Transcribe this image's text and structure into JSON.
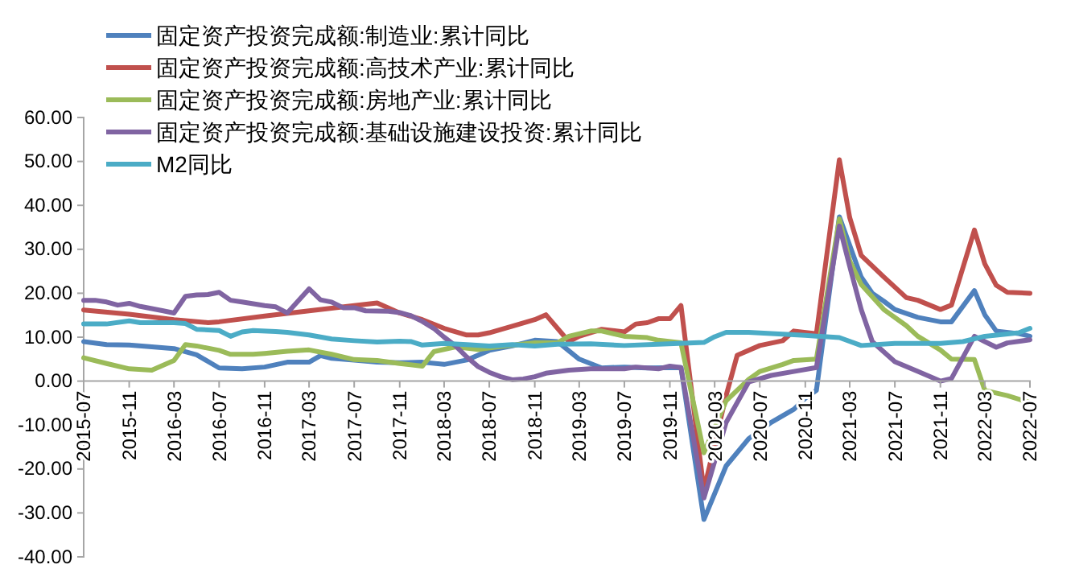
{
  "chart_data": {
    "type": "line",
    "legend": "top left",
    "grid": false,
    "marker": "none",
    "line_style": "solid",
    "xlim": [
      "2015-07",
      "2022-07"
    ],
    "xticks": [
      "2015-07",
      "2015-11",
      "2016-03",
      "2016-07",
      "2016-11",
      "2017-03",
      "2017-07",
      "2017-11",
      "2018-03",
      "2018-07",
      "2018-11",
      "2019-03",
      "2019-07",
      "2019-11",
      "2020-03",
      "2020-07",
      "2020-11",
      "2021-03",
      "2021-07",
      "2021-11",
      "2022-03",
      "2022-07"
    ],
    "ylim": [
      -40,
      60
    ],
    "yticks": [
      {
        "value": -40,
        "label": "-40.00"
      },
      {
        "value": -30,
        "label": "-30.00"
      },
      {
        "value": -20,
        "label": "-20.00"
      },
      {
        "value": -10,
        "label": "-10.00"
      },
      {
        "value": 0,
        "label": "0.00"
      },
      {
        "value": 10,
        "label": "10.00"
      },
      {
        "value": 20,
        "label": "20.00"
      },
      {
        "value": 30,
        "label": "30.00"
      },
      {
        "value": 40,
        "label": "40.00"
      },
      {
        "value": 50,
        "label": "50.00"
      },
      {
        "value": 60,
        "label": "60.00"
      }
    ],
    "series": [
      {
        "name": "固定资产投资完成额:制造业:累计同比",
        "color": "#4f81bd",
        "x": [
          "2015-07",
          "2015-09",
          "2015-11",
          "2016-01",
          "2016-03",
          "2016-05",
          "2016-07",
          "2016-09",
          "2016-11",
          "2017-01",
          "2017-03",
          "2017-04",
          "2017-05",
          "2017-07",
          "2017-09",
          "2017-11",
          "2018-01",
          "2018-03",
          "2018-05",
          "2018-07",
          "2018-09",
          "2018-11",
          "2019-01",
          "2019-03",
          "2019-05",
          "2019-07",
          "2019-09",
          "2019-12",
          "2020-02",
          "2020-04",
          "2020-06",
          "2020-08",
          "2020-10",
          "2020-11",
          "2020-12",
          "2021-02",
          "2021-04",
          "2021-05",
          "2021-06",
          "2021-07",
          "2021-09",
          "2021-11",
          "2021-12",
          "2022-02",
          "2022-03",
          "2022-04",
          "2022-06",
          "2022-07"
        ],
        "values": [
          9.0,
          8.3,
          8.2,
          7.8,
          7.4,
          6.0,
          3.0,
          2.8,
          3.2,
          4.3,
          4.3,
          5.8,
          5.2,
          4.8,
          4.3,
          4.2,
          4.3,
          3.8,
          4.8,
          7.0,
          8.0,
          9.3,
          9.0,
          5.0,
          3.0,
          3.2,
          3.0,
          3.1,
          -31.5,
          -19.3,
          -13.1,
          -9.4,
          -6.4,
          -3.9,
          -2.1,
          37.4,
          23.7,
          20.0,
          18.2,
          16.3,
          14.5,
          13.5,
          13.5,
          20.6,
          15.1,
          11.4,
          10.8,
          10.2
        ]
      },
      {
        "name": "固定资产投资完成额:高技术产业:累计同比",
        "color": "#c0504d",
        "x": [
          "2015-07",
          "2015-11",
          "2016-03",
          "2016-06",
          "2016-07",
          "2016-11",
          "2017-03",
          "2017-07",
          "2017-09",
          "2017-11",
          "2018-01",
          "2018-03",
          "2018-05",
          "2018-06",
          "2018-07",
          "2018-09",
          "2018-11",
          "2018-12",
          "2019-02",
          "2019-03",
          "2019-05",
          "2019-07",
          "2019-08",
          "2019-09",
          "2019-10",
          "2019-11",
          "2019-12",
          "2020-02",
          "2020-04",
          "2020-05",
          "2020-07",
          "2020-09",
          "2020-10",
          "2020-12",
          "2021-02",
          "2021-03",
          "2021-04",
          "2021-06",
          "2021-08",
          "2021-09",
          "2021-11",
          "2021-12",
          "2022-02",
          "2022-03",
          "2022-04",
          "2022-05",
          "2022-07"
        ],
        "values": [
          16.2,
          15.2,
          14.0,
          13.3,
          13.5,
          14.8,
          16.0,
          17.2,
          17.8,
          15.5,
          14.0,
          12.0,
          10.5,
          10.5,
          11.0,
          12.5,
          14.0,
          15.1,
          9.0,
          10.2,
          11.8,
          11.2,
          13.0,
          13.3,
          14.2,
          14.2,
          17.2,
          -24.8,
          -3.3,
          5.9,
          8.1,
          9.2,
          11.4,
          10.8,
          50.4,
          37.2,
          28.6,
          23.7,
          19.0,
          18.4,
          16.3,
          17.3,
          34.4,
          26.7,
          21.8,
          20.2,
          20.0
        ]
      },
      {
        "name": "固定资产投资完成额:房地产业:累计同比",
        "color": "#9bbb59",
        "x": [
          "2015-07",
          "2015-09",
          "2015-11",
          "2016-01",
          "2016-03",
          "2016-04",
          "2016-05",
          "2016-07",
          "2016-08",
          "2016-10",
          "2016-11",
          "2017-01",
          "2017-03",
          "2017-05",
          "2017-07",
          "2017-09",
          "2017-11",
          "2018-01",
          "2018-02",
          "2018-04",
          "2018-06",
          "2018-08",
          "2018-11",
          "2019-01",
          "2019-02",
          "2019-04",
          "2019-05",
          "2019-07",
          "2019-09",
          "2019-10",
          "2019-12",
          "2020-02",
          "2020-04",
          "2020-06",
          "2020-07",
          "2020-09",
          "2020-10",
          "2020-12",
          "2021-02",
          "2021-03",
          "2021-04",
          "2021-06",
          "2021-08",
          "2021-09",
          "2021-11",
          "2021-12",
          "2022-02",
          "2022-03",
          "2022-05",
          "2022-07"
        ],
        "values": [
          5.3,
          4.0,
          2.8,
          2.5,
          4.7,
          8.3,
          8.0,
          7.0,
          6.1,
          6.1,
          6.3,
          6.8,
          7.1,
          6.1,
          4.9,
          4.7,
          4.0,
          3.4,
          6.7,
          7.8,
          7.2,
          7.9,
          8.7,
          8.7,
          10.2,
          11.4,
          11.4,
          10.2,
          9.9,
          9.3,
          8.7,
          -16.3,
          -4.5,
          0.4,
          2.2,
          3.8,
          4.7,
          5.0,
          36.9,
          27.4,
          22.0,
          16.3,
          12.6,
          10.2,
          7.1,
          5.0,
          4.9,
          -2.1,
          -3.3,
          -4.9
        ]
      },
      {
        "name": "固定资产投资完成额:基础设施建设投资:累计同比",
        "color": "#8064a2",
        "x": [
          "2015-07",
          "2015-08",
          "2015-09",
          "2015-10",
          "2015-11",
          "2015-12",
          "2016-02",
          "2016-03",
          "2016-04",
          "2016-05",
          "2016-06",
          "2016-07",
          "2016-08",
          "2016-09",
          "2016-11",
          "2016-12",
          "2017-01",
          "2017-03",
          "2017-04",
          "2017-05",
          "2017-06",
          "2017-07",
          "2017-08",
          "2017-10",
          "2017-11",
          "2017-12",
          "2018-01",
          "2018-02",
          "2018-03",
          "2018-04",
          "2018-05",
          "2018-06",
          "2018-07",
          "2018-08",
          "2018-09",
          "2018-10",
          "2018-11",
          "2018-12",
          "2019-02",
          "2019-04",
          "2019-07",
          "2019-08",
          "2019-10",
          "2019-11",
          "2019-12",
          "2020-02",
          "2020-04",
          "2020-06",
          "2020-08",
          "2020-10",
          "2020-12",
          "2021-02",
          "2021-03",
          "2021-04",
          "2021-05",
          "2021-07",
          "2021-09",
          "2021-11",
          "2021-12",
          "2022-02",
          "2022-03",
          "2022-04",
          "2022-05",
          "2022-07"
        ],
        "values": [
          18.4,
          18.4,
          18.0,
          17.3,
          17.7,
          17.0,
          16.0,
          15.5,
          19.3,
          19.6,
          19.7,
          20.2,
          18.4,
          18.0,
          17.2,
          16.9,
          15.5,
          21.0,
          18.5,
          18.0,
          16.7,
          16.7,
          16.0,
          15.9,
          15.6,
          14.9,
          13.6,
          12.0,
          10.0,
          8.0,
          5.5,
          3.3,
          2.0,
          1.0,
          0.3,
          0.5,
          1.0,
          1.8,
          2.5,
          2.8,
          2.8,
          3.2,
          2.8,
          3.4,
          3.1,
          -26.6,
          -9.4,
          -0.2,
          1.3,
          2.2,
          3.1,
          35.3,
          26.1,
          16.3,
          9.0,
          4.4,
          2.2,
          0.0,
          0.6,
          10.2,
          9.0,
          7.7,
          8.7,
          9.4
        ]
      },
      {
        "name": "M2同比",
        "color": "#4bacc6",
        "x": [
          "2015-07",
          "2015-09",
          "2015-11",
          "2015-12",
          "2016-03",
          "2016-04",
          "2016-05",
          "2016-07",
          "2016-08",
          "2016-09",
          "2016-10",
          "2016-12",
          "2017-01",
          "2017-03",
          "2017-05",
          "2017-07",
          "2017-09",
          "2017-11",
          "2017-12",
          "2018-01",
          "2018-03",
          "2018-05",
          "2018-07",
          "2018-09",
          "2018-11",
          "2019-01",
          "2019-04",
          "2019-07",
          "2019-10",
          "2020-02",
          "2020-03",
          "2020-04",
          "2020-06",
          "2020-09",
          "2020-11",
          "2021-02",
          "2021-04",
          "2021-07",
          "2021-11",
          "2022-01",
          "2022-03",
          "2022-06",
          "2022-07"
        ],
        "values": [
          13.0,
          13.0,
          13.7,
          13.3,
          13.3,
          13.1,
          11.8,
          11.5,
          10.2,
          11.2,
          11.5,
          11.3,
          11.1,
          10.5,
          9.6,
          9.2,
          8.9,
          9.1,
          9.0,
          8.2,
          8.6,
          8.3,
          8.0,
          8.3,
          8.0,
          8.4,
          8.5,
          8.1,
          8.4,
          8.8,
          10.1,
          11.1,
          11.1,
          10.7,
          10.4,
          9.9,
          8.1,
          8.6,
          8.6,
          9.0,
          10.2,
          11.0,
          12.0
        ]
      }
    ]
  }
}
